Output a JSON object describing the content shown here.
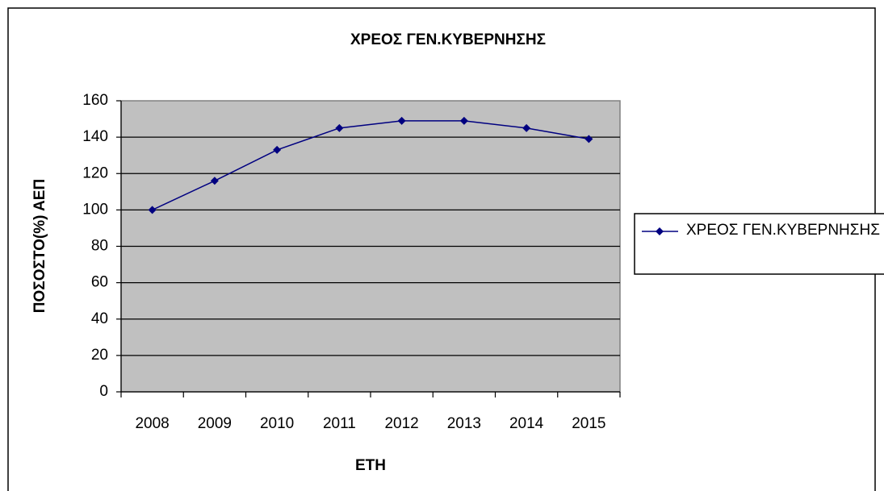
{
  "chart_data": {
    "type": "line",
    "title": "ΧΡΕΟΣ ΓΕΝ.ΚΥΒΕΡΝΗΣΗΣ",
    "x_label": "ΕΤΗ",
    "y_label": "ΠΟΣΟΣΤΟ(%) ΑΕΠ",
    "categories": [
      "2008",
      "2009",
      "2010",
      "2011",
      "2012",
      "2013",
      "2014",
      "2015"
    ],
    "series": [
      {
        "name": "ΧΡΕΟΣ ΓΕΝ.ΚΥΒΕΡΝΗΣΗΣ",
        "color": "#000080",
        "values": [
          100,
          116,
          133,
          145,
          149,
          149,
          145,
          139
        ]
      }
    ],
    "ylim": [
      0,
      160
    ],
    "yticks": [
      0,
      20,
      40,
      60,
      80,
      100,
      120,
      140,
      160
    ],
    "grid": true,
    "legend": "right"
  }
}
